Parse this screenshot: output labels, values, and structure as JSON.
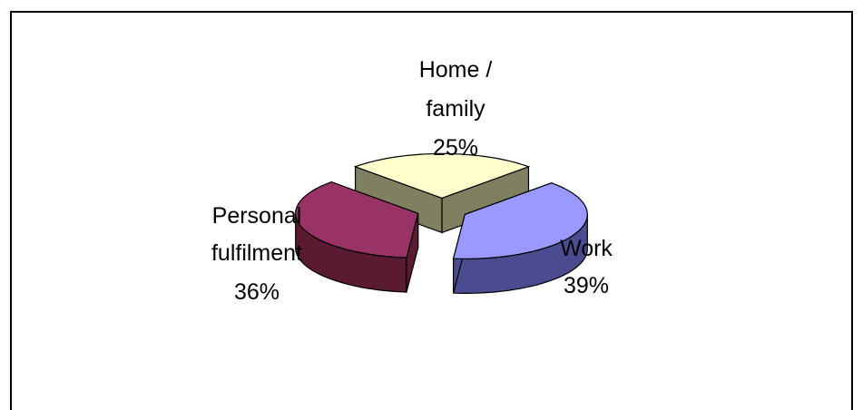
{
  "chart_data": {
    "type": "pie",
    "style": "3d-exploded",
    "slices": [
      {
        "name": "Home /",
        "name_line2": "family",
        "value": 25,
        "value_label": "25%",
        "top_color": "#ffffcc",
        "side_color": "#808060"
      },
      {
        "name": "Work",
        "value": 39,
        "value_label": "39%",
        "top_color": "#9999ff",
        "side_color": "#4b4b90"
      },
      {
        "name": "Personal",
        "name_line2": "fulfilment",
        "value": 36,
        "value_label": "36%",
        "top_color": "#993366",
        "side_color": "#5a1a32"
      }
    ],
    "title": "",
    "legend": "none"
  }
}
